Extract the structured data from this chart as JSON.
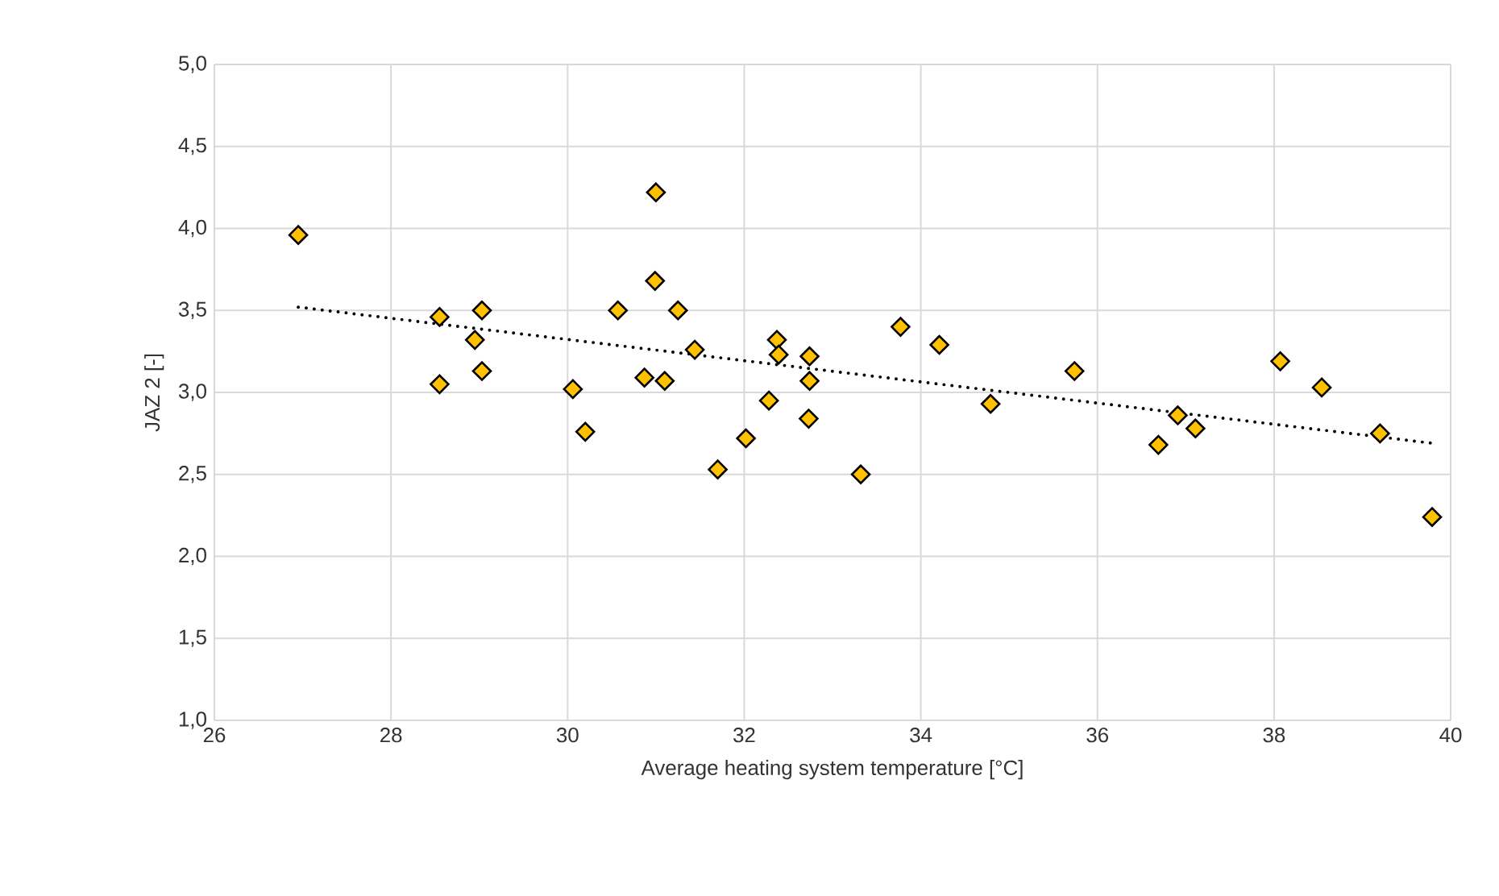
{
  "chart_data": {
    "type": "scatter",
    "xlabel": "Average heating system temperature [°C]",
    "ylabel": "JAZ 2 [-]",
    "xlim": [
      26,
      40
    ],
    "xticks": [
      26,
      28,
      30,
      32,
      34,
      36,
      38,
      40
    ],
    "ylim": [
      1,
      5
    ],
    "yticks": [
      {
        "value": 1,
        "label": "1,0"
      },
      {
        "value": 1.5,
        "label": "1,5"
      },
      {
        "value": 2,
        "label": "2,0"
      },
      {
        "value": 2.5,
        "label": "2,5"
      },
      {
        "value": 3,
        "label": "3,0"
      },
      {
        "value": 3.5,
        "label": "3,5"
      },
      {
        "value": 4,
        "label": "4,0"
      },
      {
        "value": 4.5,
        "label": "4,5"
      },
      {
        "value": 5,
        "label": "5,0"
      }
    ],
    "grid": true,
    "series": [
      {
        "marker": "diamond",
        "color": "#ffc000",
        "x": [
          26.95,
          28.55,
          28.55,
          29.03,
          28.95,
          29.03,
          30.06,
          30.2,
          30.57,
          31.0,
          30.99,
          30.87,
          31.1,
          31.25,
          31.44,
          31.7,
          32.02,
          32.28,
          32.37,
          32.39,
          32.74,
          32.74,
          32.73,
          33.32,
          33.77,
          34.21,
          34.79,
          35.74,
          36.69,
          36.91,
          37.11,
          38.07,
          38.54,
          39.2,
          39.79
        ],
        "values": [
          3.96,
          3.46,
          3.05,
          3.5,
          3.32,
          3.13,
          3.02,
          2.76,
          3.5,
          4.22,
          3.68,
          3.09,
          3.07,
          3.5,
          3.26,
          2.53,
          2.72,
          2.95,
          3.32,
          3.23,
          3.22,
          3.07,
          2.84,
          2.5,
          3.4,
          3.29,
          2.93,
          3.13,
          2.68,
          2.86,
          2.78,
          3.19,
          3.03,
          2.75,
          2.24
        ]
      },
      {
        "type": "line",
        "line_style": "dotted",
        "color": "#000000",
        "x": [
          26.95,
          39.79
        ],
        "values": [
          3.52,
          2.69
        ]
      }
    ]
  }
}
